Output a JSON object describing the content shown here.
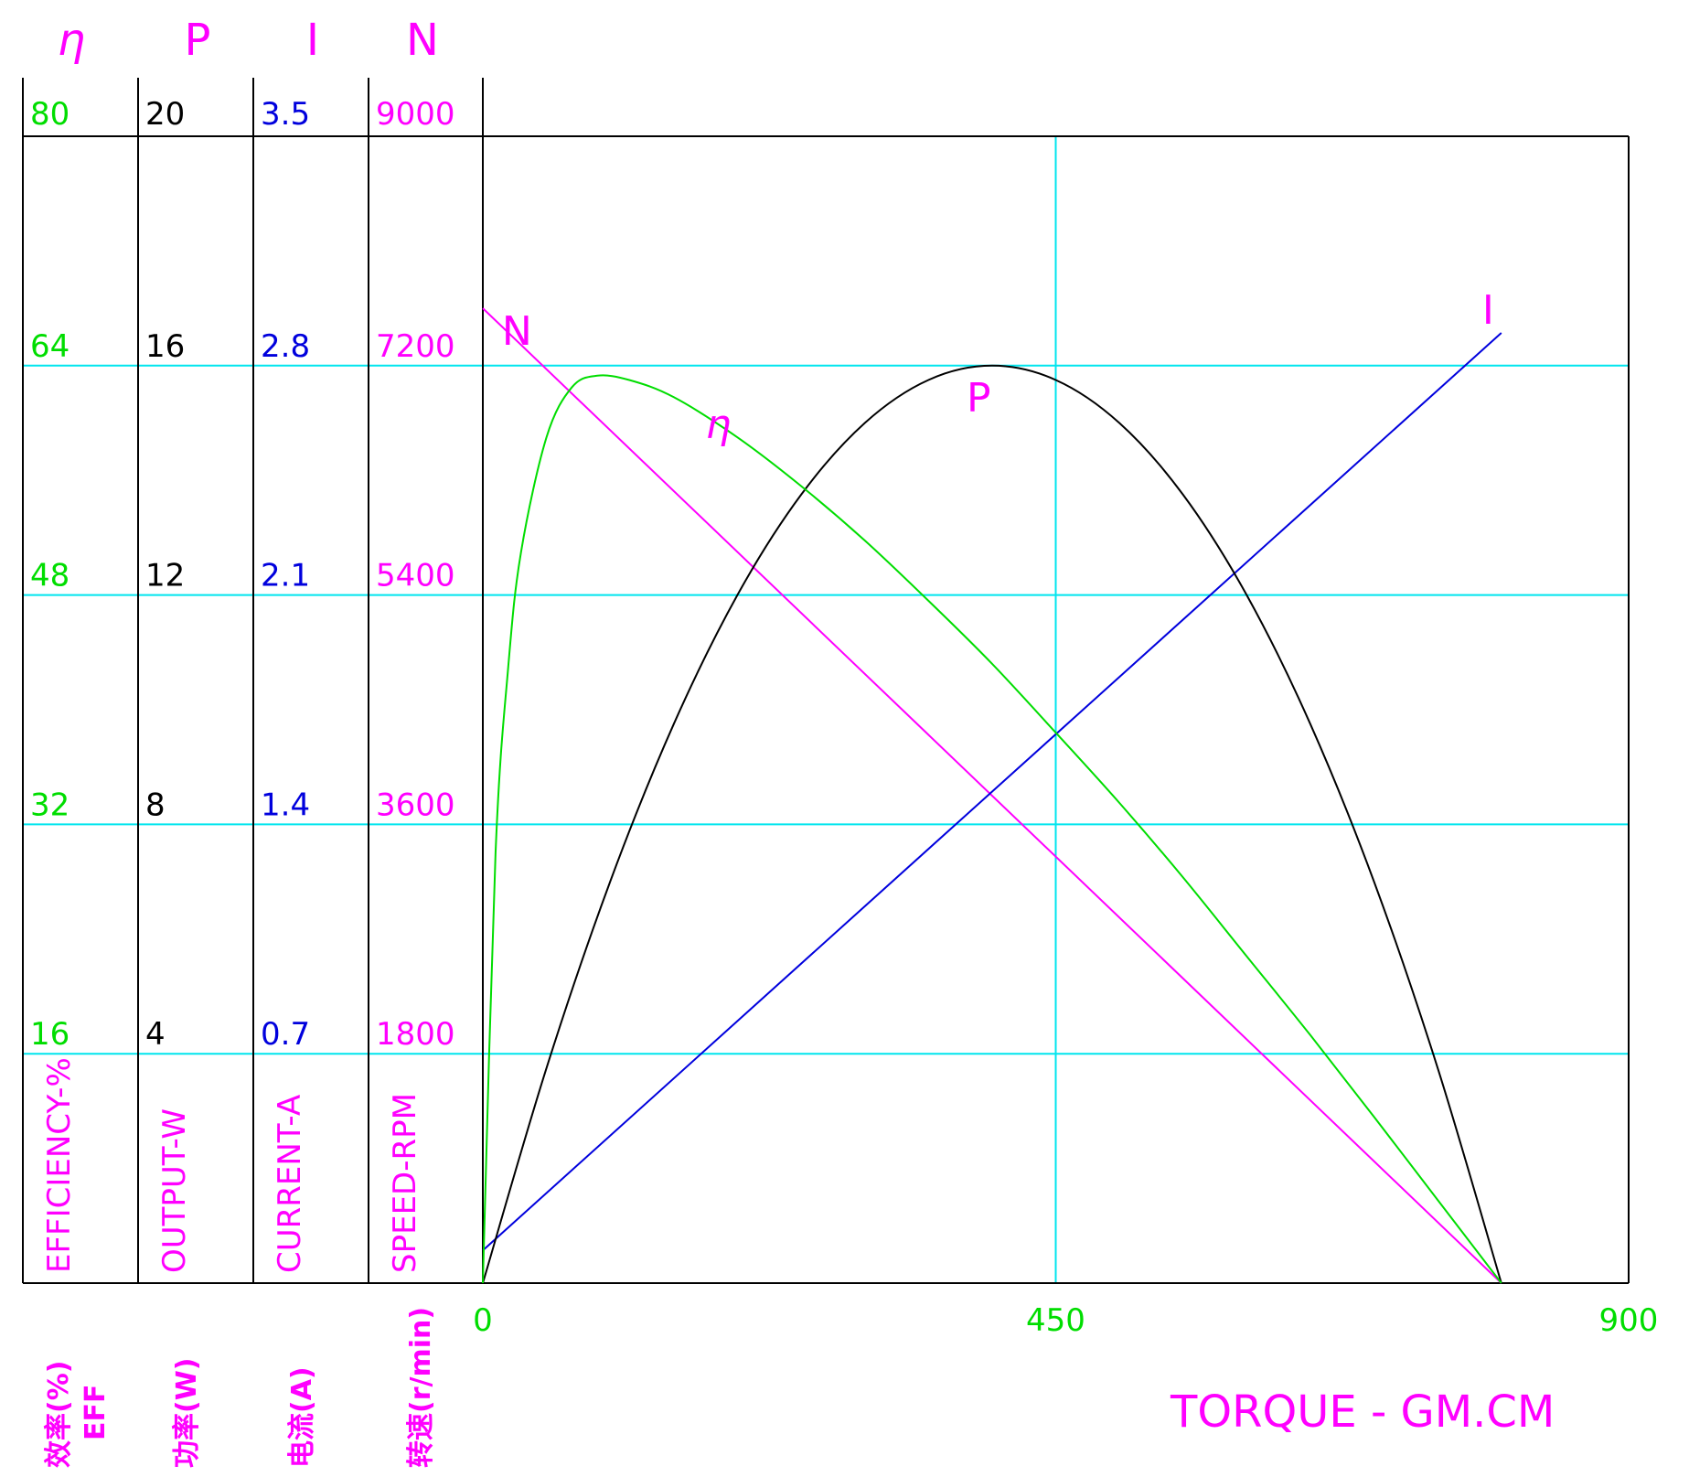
{
  "chart_data": {
    "type": "line",
    "colors": {
      "efficiency": "#00dd00",
      "output": "#000000",
      "current": "#0000dd",
      "speed": "#ff00ff",
      "grid": "#00e5ee",
      "torque_tick": "#00dd00",
      "label": "#ff00ff"
    },
    "column_headers": {
      "efficiency": "η",
      "output": "P",
      "current": "I",
      "speed": "N"
    },
    "axes": {
      "efficiency": {
        "ticks": [
          "80",
          "64",
          "48",
          "32",
          "16"
        ],
        "ylim": [
          0,
          80
        ],
        "label": "EFFICIENCY-%"
      },
      "output": {
        "ticks": [
          "20",
          "16",
          "12",
          "8",
          "4"
        ],
        "ylim": [
          0,
          20
        ],
        "label": "OUTPUT-W"
      },
      "current": {
        "ticks": [
          "3.5",
          "2.8",
          "2.1",
          "1.4",
          "0.7"
        ],
        "ylim": [
          0,
          3.5
        ],
        "label": "CURRENT-A"
      },
      "speed": {
        "ticks": [
          "9000",
          "7200",
          "5400",
          "3600",
          "1800"
        ],
        "ylim": [
          0,
          9000
        ],
        "label": "SPEED-RPM"
      }
    },
    "bottom_labels": {
      "efficiency": "效率(%)",
      "efficiency_en": "EFF",
      "output": "功率(W)",
      "current": "电流(A)",
      "speed": "转速(r/min)"
    },
    "xaxis": {
      "ticks": [
        "0",
        "450",
        "900"
      ],
      "xlim": [
        0,
        900
      ],
      "label": "TORQUE - GM.CM"
    },
    "grid": true,
    "series": [
      {
        "name": "N",
        "axis": "speed",
        "x": [
          0,
          800
        ],
        "y": [
          7650,
          0
        ]
      },
      {
        "name": "I",
        "axis": "current",
        "x": [
          0,
          800
        ],
        "y": [
          0.1,
          2.9
        ]
      },
      {
        "name": "P",
        "axis": "output",
        "x": [
          0,
          50,
          100,
          150,
          200,
          250,
          300,
          350,
          400,
          450,
          500,
          550,
          600,
          650,
          700,
          750,
          800
        ],
        "y": [
          0,
          3.75,
          7.0,
          9.75,
          12.0,
          13.75,
          15.0,
          15.75,
          16.0,
          15.75,
          15.0,
          13.75,
          12.0,
          9.75,
          7.0,
          3.75,
          0
        ]
      },
      {
        "name": "η",
        "axis": "efficiency",
        "x": [
          0,
          10,
          20,
          30,
          50,
          70,
          90,
          115,
          150,
          200,
          250,
          300,
          350,
          400,
          450,
          500,
          550,
          600,
          650,
          700,
          750,
          800
        ],
        "y": [
          0,
          30,
          43,
          51,
          59,
          62.5,
          63.3,
          63.0,
          61.8,
          59.0,
          55.6,
          51.8,
          47.6,
          43.2,
          38.4,
          33.5,
          28.3,
          22.8,
          17.3,
          11.6,
          5.8,
          0
        ]
      }
    ]
  }
}
